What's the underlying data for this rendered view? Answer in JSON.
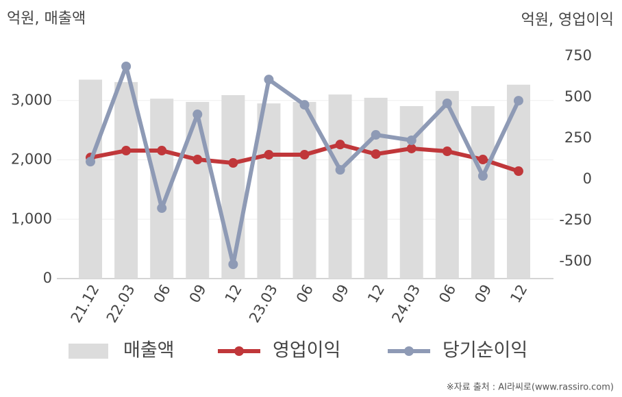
{
  "chart_data": {
    "type": "bar-line",
    "y_axis_label": "억원, 매출액",
    "y2_axis_label": "억원, 영업이익",
    "source": "※자료 출처 : AI라씨로(www.rassiro.com)",
    "categories": [
      "21.12",
      "22.03",
      "06",
      "09",
      "12",
      "23.03",
      "06",
      "09",
      "12",
      "24.03",
      "06",
      "09",
      "12"
    ],
    "series": [
      {
        "name": "매출액",
        "color": "#dcdcdc",
        "kind": "bar",
        "values": [
          3350,
          3310,
          3030,
          2975,
          3090,
          2950,
          2975,
          3100,
          3045,
          2905,
          3160,
          2905,
          3265
        ]
      },
      {
        "name": "영업이익",
        "color": "#c0373a",
        "kind": "line",
        "axis": "y2",
        "values": [
          133,
          175,
          175,
          121,
          100,
          150,
          150,
          212,
          154,
          188,
          171,
          121,
          50
        ]
      },
      {
        "name": "당기순이익",
        "color": "#8e9ab5",
        "kind": "line",
        "axis": "y2",
        "values": [
          108,
          688,
          -175,
          396,
          -517,
          608,
          454,
          58,
          271,
          238,
          463,
          21,
          479
        ]
      }
    ],
    "ylim": [
      0,
      4000
    ],
    "yticks": [
      0,
      {
        "value": 1000,
        "label": "1,000"
      },
      {
        "value": 2000,
        "label": "2,000"
      },
      {
        "value": 3000,
        "label": "3,000"
      }
    ],
    "y2lim": [
      -604,
      842
    ],
    "y2ticks": [
      -500,
      -250,
      0,
      250,
      500,
      750
    ],
    "grid": true
  }
}
